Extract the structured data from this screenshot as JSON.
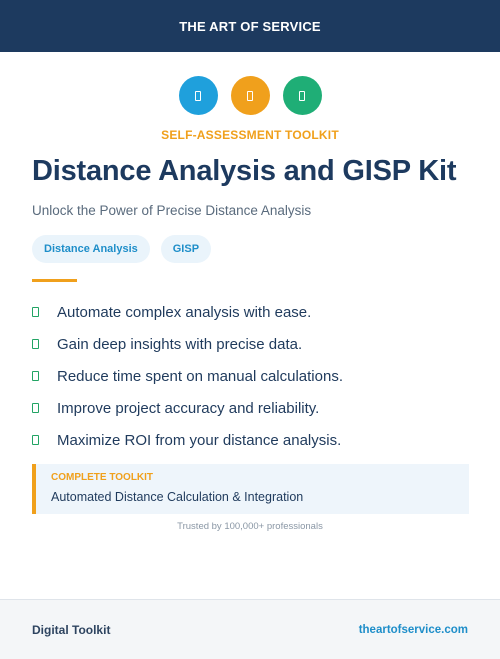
{
  "header": {
    "title": "THE ART OF SERVICE"
  },
  "icons": [
    {
      "name": "blue-doc-icon",
      "color": "#1fa0dc"
    },
    {
      "name": "orange-doc-icon",
      "color": "#f0a01c"
    },
    {
      "name": "green-doc-icon",
      "color": "#1fae76"
    }
  ],
  "eyebrow": "SELF-ASSESSMENT TOOLKIT",
  "title": "Distance Analysis and GISP Kit",
  "subtitle": "Unlock the Power of Precise Distance Analysis",
  "tags": [
    "Distance Analysis",
    "GISP"
  ],
  "benefits": [
    "Automate complex analysis with ease.",
    "Gain deep insights with precise data.",
    "Reduce time spent on manual calculations.",
    "Improve project accuracy and reliability.",
    "Maximize ROI from your distance analysis."
  ],
  "callout": {
    "label": "COMPLETE TOOLKIT",
    "text": "Automated Distance Calculation & Integration"
  },
  "trusted": "Trusted by 100,000+ professionals",
  "footer": {
    "left": "Digital Toolkit",
    "right": "theartofservice.com"
  },
  "colors": {
    "accent": "#f0a01c",
    "navy": "#1d3a5f",
    "link": "#1e8ec9",
    "check": "#22a464"
  }
}
